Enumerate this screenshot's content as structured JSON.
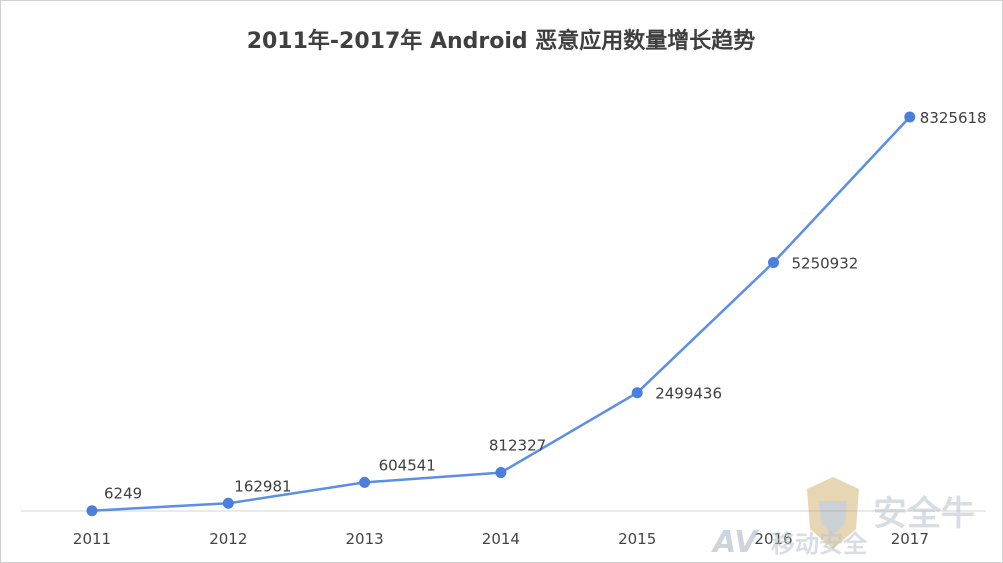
{
  "chart_data": {
    "type": "line",
    "title": "2011年-2017年 Android 恶意应用数量增长趋势",
    "categories": [
      "2011",
      "2012",
      "2013",
      "2014",
      "2015",
      "2016",
      "2017"
    ],
    "series": [
      {
        "values": [
          6249,
          162981,
          604541,
          812327,
          2499436,
          5250932,
          8325618
        ]
      }
    ],
    "ylim": [
      0,
      9000000
    ],
    "grid": false,
    "legend": "none",
    "colors": {
      "line": "#5b8ee6",
      "marker": "#4a7fdc"
    }
  },
  "watermark": {
    "brand": "安全牛",
    "av_prefix": "AV",
    "av_rest": "移动安全"
  }
}
